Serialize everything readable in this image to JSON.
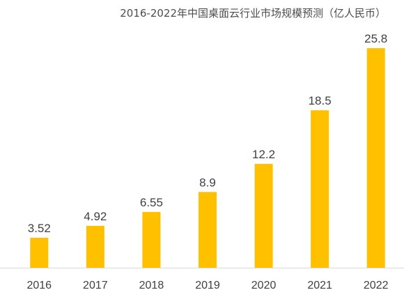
{
  "chart_data": {
    "type": "bar",
    "title": "2016-2022年中国桌面云行业市场规模预测（亿人民币）",
    "xlabel": "",
    "ylabel": "",
    "categories": [
      "2016",
      "2017",
      "2018",
      "2019",
      "2020",
      "2021",
      "2022"
    ],
    "values": [
      3.52,
      4.92,
      6.55,
      8.9,
      12.2,
      18.5,
      25.8
    ],
    "value_labels": [
      "3.52",
      "4.92",
      "6.55",
      "8.9",
      "12.2",
      "18.5",
      "25.8"
    ],
    "ylim": [
      0,
      29
    ],
    "grid": false,
    "legend": "none",
    "colors": {
      "bar": "#FFC000",
      "axis": "#D9D9D9",
      "text": "#404040"
    }
  }
}
